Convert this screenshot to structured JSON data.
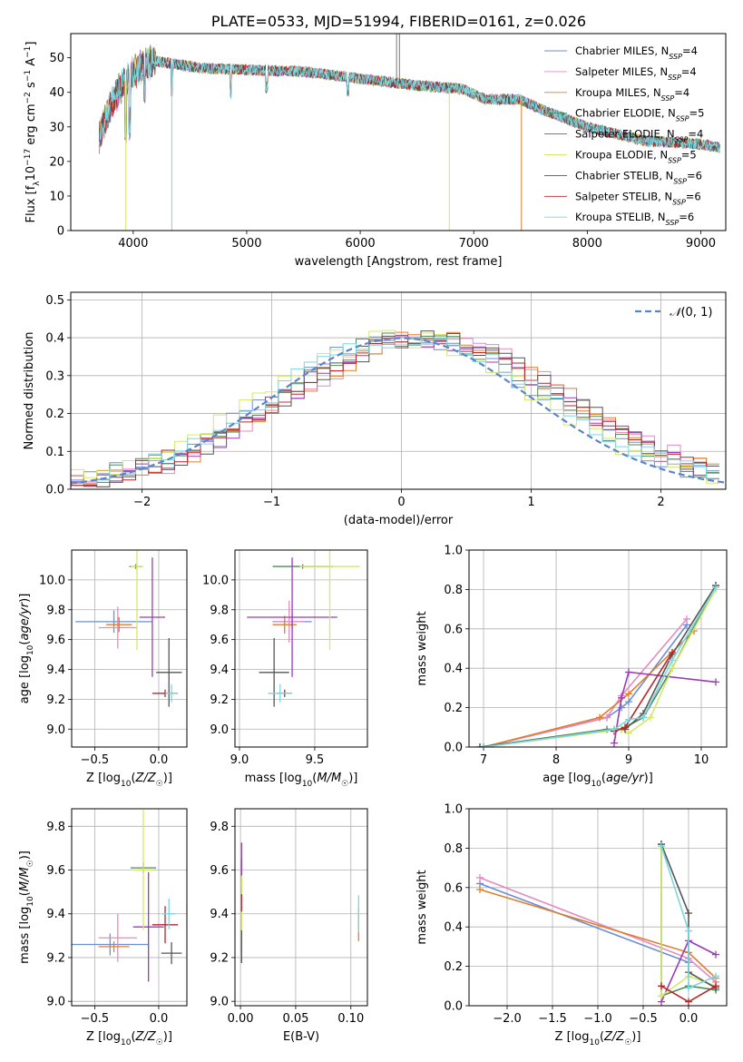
{
  "figure": {
    "title": "PLATE=0533, MJD=51994, FIBERID=0161, z=0.026"
  },
  "colors": [
    "#6a8fd4",
    "#e58ac0",
    "#e07d2c",
    "#4e8a56",
    "#9a3cb8",
    "#d4e86a",
    "#555555",
    "#b8262b",
    "#7ad7df"
  ],
  "models": [
    "Chabrier MILES, N$_{SSP}$=4",
    "Salpeter MILES, N$_{SSP}$=4",
    "Kroupa MILES, N$_{SSP}$=4",
    "Chabrier ELODIE, N$_{SSP}$=5",
    "Salpeter ELODIE, N$_{SSP}$=4",
    "Kroupa ELODIE, N$_{SSP}$=5",
    "Chabrier STELIB, N$_{SSP}$=6",
    "Salpeter STELIB, N$_{SSP}$=6",
    "Kroupa STELIB, N$_{SSP}$=6"
  ],
  "legend_spectrum": [
    {
      "pre": "Chabrier MILES, N",
      "sub": "SSP",
      "post": "=4"
    },
    {
      "pre": "Salpeter MILES, N",
      "sub": "SSP",
      "post": "=4"
    },
    {
      "pre": "Kroupa MILES, N",
      "sub": "SSP",
      "post": "=4"
    },
    {
      "pre": "Chabrier ELODIE, N",
      "sub": "SSP",
      "post": "=5"
    },
    {
      "pre": "Salpeter ELODIE, N",
      "sub": "SSP",
      "post": "=4"
    },
    {
      "pre": "Kroupa ELODIE, N",
      "sub": "SSP",
      "post": "=5"
    },
    {
      "pre": "Chabrier STELIB, N",
      "sub": "SSP",
      "post": "=6"
    },
    {
      "pre": "Salpeter STELIB, N",
      "sub": "SSP",
      "post": "=6"
    },
    {
      "pre": "Kroupa STELIB, N",
      "sub": "SSP",
      "post": "=6"
    }
  ],
  "chart_data": [
    {
      "id": "spectrum",
      "type": "line",
      "xlabel": "wavelength [Angstrom, rest frame]",
      "ylabel_parts": [
        "Flux [f",
        "λ",
        "10",
        "−17",
        " erg cm",
        "−2",
        " s",
        "−1",
        " A",
        "−1",
        "]"
      ],
      "xlim": [
        3450,
        9220
      ],
      "ylim": [
        0,
        57
      ],
      "xticks": [
        4000,
        5000,
        6000,
        7000,
        8000,
        9000
      ],
      "yticks": [
        0,
        10,
        20,
        30,
        40,
        50
      ],
      "continuum": {
        "x": [
          3700,
          3800,
          3900,
          4000,
          4100,
          4200,
          4400,
          4600,
          5000,
          5500,
          6000,
          6500,
          6900,
          7100,
          7400,
          7600,
          8000,
          8500,
          9000,
          9170
        ],
        "y": [
          27,
          36,
          42,
          46,
          48,
          49,
          48,
          47,
          46.5,
          46,
          44,
          42,
          41,
          38,
          38,
          35,
          30,
          26,
          25,
          24
        ]
      },
      "dips": [
        {
          "series": 5,
          "x": 3935,
          "y": 0
        },
        {
          "series": 8,
          "x": 4340,
          "y": 0
        },
        {
          "series": 5,
          "x": 6785,
          "y": 0
        },
        {
          "series": 2,
          "x": 7420,
          "y": 0
        }
      ],
      "spikes": [
        {
          "series": 6,
          "x": 6320,
          "y": 57
        },
        {
          "series": 6,
          "x": 6345,
          "y": 57
        }
      ]
    },
    {
      "id": "residuals",
      "type": "line",
      "xlabel": "(data-model)/error",
      "ylabel": "Normed distribution",
      "xlim": [
        -2.55,
        2.5
      ],
      "ylim": [
        0,
        0.52
      ],
      "xticks": [
        -2,
        -1,
        0,
        1,
        2
      ],
      "yticks": [
        0.0,
        0.1,
        0.2,
        0.3,
        0.4,
        0.5
      ],
      "legend": "N(0,1)",
      "gauss": {
        "mu": 0,
        "sigma": 1
      },
      "hist_bins": {
        "start": -2.55,
        "width": 0.1
      }
    },
    {
      "id": "age_vs_Z",
      "type": "scatter",
      "xlabel": "Z [log10(Z/Z☉)]",
      "ylabel": "age  [log10(age/yr)]",
      "xlim": [
        -0.68,
        0.22
      ],
      "ylim": [
        8.88,
        10.2
      ],
      "xticks": [
        -0.5,
        0.0
      ],
      "yticks": [
        9.0,
        9.2,
        9.4,
        9.6,
        9.8,
        10.0
      ],
      "points": [
        {
          "s": 0,
          "x": -0.35,
          "y": 9.72,
          "xe": 0.3,
          "ye": 0.15
        },
        {
          "s": 1,
          "x": -0.32,
          "y": 9.68,
          "xe": 0.15,
          "ye": 0.28
        },
        {
          "s": 2,
          "x": -0.31,
          "y": 9.7,
          "xe": 0.1,
          "ye": 0.1
        },
        {
          "s": 3,
          "x": -0.18,
          "y": 10.09,
          "xe": 0.05,
          "ye": 0.03
        },
        {
          "s": 4,
          "x": -0.05,
          "y": 9.75,
          "xe": 0.1,
          "ye": 0.8
        },
        {
          "s": 5,
          "x": -0.17,
          "y": 10.09,
          "xe": 0.05,
          "ye": 1.12
        },
        {
          "s": 6,
          "x": 0.08,
          "y": 9.38,
          "xe": 0.1,
          "ye": 0.46
        },
        {
          "s": 7,
          "x": 0.05,
          "y": 9.24,
          "xe": 0.1,
          "ye": 0.05
        },
        {
          "s": 8,
          "x": 0.1,
          "y": 9.24,
          "xe": 0.05,
          "ye": 0.12
        }
      ]
    },
    {
      "id": "age_vs_mass",
      "type": "scatter",
      "xlabel": "mass [log10(M/M☉)]",
      "ylabel": "",
      "xlim": [
        8.97,
        9.85
      ],
      "ylim": [
        8.88,
        10.2
      ],
      "xticks": [
        9.0,
        9.5
      ],
      "yticks": [
        9.0,
        9.2,
        9.4,
        9.6,
        9.8,
        10.0
      ],
      "points": [
        {
          "s": 0,
          "x": 9.35,
          "y": 9.72,
          "xe": 0.13,
          "ye": 0.1
        },
        {
          "s": 1,
          "x": 9.33,
          "y": 9.72,
          "xe": 0.1,
          "ye": 0.28
        },
        {
          "s": 2,
          "x": 9.3,
          "y": 9.7,
          "xe": 0.08,
          "ye": 0.12
        },
        {
          "s": 3,
          "x": 9.42,
          "y": 10.09,
          "xe": 0.2,
          "ye": 0.03
        },
        {
          "s": 4,
          "x": 9.35,
          "y": 9.75,
          "xe": 0.3,
          "ye": 0.8
        },
        {
          "s": 5,
          "x": 9.6,
          "y": 10.09,
          "xe": 0.2,
          "ye": 1.12
        },
        {
          "s": 6,
          "x": 9.23,
          "y": 9.38,
          "xe": 0.1,
          "ye": 0.46
        },
        {
          "s": 7,
          "x": 9.3,
          "y": 9.24,
          "xe": 0.05,
          "ye": 0.05
        },
        {
          "s": 8,
          "x": 9.27,
          "y": 9.24,
          "xe": 0.08,
          "ye": 0.12
        }
      ]
    },
    {
      "id": "massweight_vs_age",
      "type": "line",
      "xlabel": "age  [log10(age/yr)]",
      "ylabel": "mass weight",
      "xlim": [
        6.8,
        10.35
      ],
      "ylim": [
        0,
        1.0
      ],
      "xticks": [
        7,
        8,
        9,
        10
      ],
      "yticks": [
        0.0,
        0.2,
        0.4,
        0.6,
        0.8,
        1.0
      ],
      "series": [
        {
          "s": 0,
          "x": [
            7.0,
            8.7,
            8.9,
            9.0,
            9.8
          ],
          "y": [
            0.0,
            0.15,
            0.2,
            0.23,
            0.62
          ]
        },
        {
          "s": 1,
          "x": [
            7.0,
            8.7,
            8.9,
            9.8
          ],
          "y": [
            0.0,
            0.15,
            0.26,
            0.65
          ]
        },
        {
          "s": 2,
          "x": [
            7.0,
            8.6,
            9.0,
            9.9
          ],
          "y": [
            0.0,
            0.15,
            0.27,
            0.59
          ]
        },
        {
          "s": 3,
          "x": [
            6.95,
            8.7,
            8.9,
            9.2,
            9.6,
            10.2
          ],
          "y": [
            0.0,
            0.09,
            0.09,
            0.15,
            0.4,
            0.82
          ]
        },
        {
          "s": 4,
          "x": [
            8.8,
            8.9,
            9.0,
            10.2
          ],
          "y": [
            0.02,
            0.25,
            0.38,
            0.33
          ]
        },
        {
          "s": 5,
          "x": [
            7.0,
            8.9,
            9.0,
            9.3,
            9.6,
            10.2
          ],
          "y": [
            0.0,
            0.09,
            0.07,
            0.15,
            0.4,
            0.8
          ]
        },
        {
          "s": 6,
          "x": [
            6.95,
            8.8,
            8.95,
            9.2,
            9.6,
            10.2
          ],
          "y": [
            0.0,
            0.09,
            0.09,
            0.17,
            0.47,
            0.82
          ]
        },
        {
          "s": 7,
          "x": [
            8.8,
            8.95,
            9.6
          ],
          "y": [
            0.08,
            0.1,
            0.48
          ]
        },
        {
          "s": 8,
          "x": [
            7.0,
            8.8,
            9.0,
            9.2,
            9.6,
            10.2
          ],
          "y": [
            0.0,
            0.09,
            0.14,
            0.15,
            0.44,
            0.81
          ]
        }
      ]
    },
    {
      "id": "mass_vs_Z",
      "type": "scatter",
      "xlabel": "Z [log10(Z/Z☉)]",
      "ylabel": "mass [log10(M/M☉)]",
      "xlim": [
        -0.68,
        0.22
      ],
      "ylim": [
        8.98,
        9.88
      ],
      "xticks": [
        -0.5,
        0.0
      ],
      "yticks": [
        9.0,
        9.2,
        9.4,
        9.6,
        9.8
      ],
      "points": [
        {
          "s": 0,
          "x": -0.38,
          "y": 9.26,
          "xe": 0.3,
          "ye": 0.1
        },
        {
          "s": 1,
          "x": -0.32,
          "y": 9.29,
          "xe": 0.15,
          "ye": 0.22
        },
        {
          "s": 2,
          "x": -0.35,
          "y": 9.25,
          "xe": 0.12,
          "ye": 0.05
        },
        {
          "s": 3,
          "x": -0.12,
          "y": 9.61,
          "xe": 0.1,
          "ye": 0.05
        },
        {
          "s": 4,
          "x": -0.08,
          "y": 9.34,
          "xe": 0.12,
          "ye": 0.5
        },
        {
          "s": 5,
          "x": -0.12,
          "y": 9.6,
          "xe": 0.08,
          "ye": 0.55
        },
        {
          "s": 6,
          "x": 0.1,
          "y": 9.22,
          "xe": 0.08,
          "ye": 0.1
        },
        {
          "s": 7,
          "x": 0.05,
          "y": 9.35,
          "xe": 0.1,
          "ye": 0.17
        },
        {
          "s": 8,
          "x": 0.08,
          "y": 9.4,
          "xe": 0.05,
          "ye": 0.14
        }
      ]
    },
    {
      "id": "mass_vs_EBV",
      "type": "scatter",
      "xlabel": "E(B-V)",
      "ylabel": "",
      "xlim": [
        -0.005,
        0.115
      ],
      "ylim": [
        8.98,
        9.88
      ],
      "xticks": [
        0.0,
        0.05,
        0.1
      ],
      "yticks": [
        9.0,
        9.2,
        9.4,
        9.6,
        9.8
      ],
      "points": [
        {
          "s": 0,
          "x": 0.001,
          "y": 9.4,
          "xe": 0,
          "ye": 0.15
        },
        {
          "s": 1,
          "x": 0.001,
          "y": 9.45,
          "xe": 0,
          "ye": 0.15
        },
        {
          "s": 2,
          "x": 0.107,
          "y": 9.35,
          "xe": 0,
          "ye": 0.15
        },
        {
          "s": 3,
          "x": 0.001,
          "y": 9.6,
          "xe": 0,
          "ye": 0.1
        },
        {
          "s": 4,
          "x": 0.001,
          "y": 9.6,
          "xe": 0,
          "ye": 0.25
        },
        {
          "s": 5,
          "x": 0.001,
          "y": 9.4,
          "xe": 0,
          "ye": 0.35
        },
        {
          "s": 6,
          "x": 0.001,
          "y": 9.25,
          "xe": 0,
          "ye": 0.15
        },
        {
          "s": 7,
          "x": 0.001,
          "y": 9.45,
          "xe": 0,
          "ye": 0.08
        },
        {
          "s": 8,
          "x": 0.107,
          "y": 9.4,
          "xe": 0,
          "ye": 0.17
        }
      ]
    },
    {
      "id": "massweight_vs_Z",
      "type": "line",
      "xlabel": "Z [log10(Z/Z☉)]",
      "ylabel": "mass weight",
      "xlim": [
        -2.42,
        0.42
      ],
      "ylim": [
        0,
        1.0
      ],
      "xticks": [
        -2.0,
        -1.5,
        -1.0,
        -0.5,
        0.0
      ],
      "yticks": [
        0.0,
        0.2,
        0.4,
        0.6,
        0.8,
        1.0
      ],
      "series": [
        {
          "s": 0,
          "x": [
            -2.3,
            0.0
          ],
          "y": [
            0.62,
            0.22
          ]
        },
        {
          "s": 1,
          "x": [
            -2.3,
            0.0,
            0.3
          ],
          "y": [
            0.65,
            0.24,
            0.12
          ]
        },
        {
          "s": 2,
          "x": [
            -2.3,
            0.0,
            0.3
          ],
          "y": [
            0.59,
            0.27,
            0.14
          ]
        },
        {
          "s": 3,
          "x": [
            -0.3,
            -0.3,
            0.0,
            0.3
          ],
          "y": [
            0.82,
            0.05,
            0.1,
            0.08
          ]
        },
        {
          "s": 4,
          "x": [
            -0.3,
            0.0,
            0.3
          ],
          "y": [
            0.02,
            0.33,
            0.26
          ]
        },
        {
          "s": 5,
          "x": [
            -0.3,
            -0.3,
            0.0,
            0.3
          ],
          "y": [
            0.8,
            0.05,
            0.15,
            0.1
          ]
        },
        {
          "s": 6,
          "x": [
            -0.3,
            0.0,
            0.0,
            0.3
          ],
          "y": [
            0.82,
            0.47,
            0.17,
            0.09
          ]
        },
        {
          "s": 7,
          "x": [
            -0.3,
            0.0,
            0.3
          ],
          "y": [
            0.1,
            0.02,
            0.1
          ]
        },
        {
          "s": 8,
          "x": [
            -0.3,
            0.0,
            0.0,
            0.3
          ],
          "y": [
            0.81,
            0.38,
            0.09,
            0.15
          ]
        }
      ]
    }
  ]
}
